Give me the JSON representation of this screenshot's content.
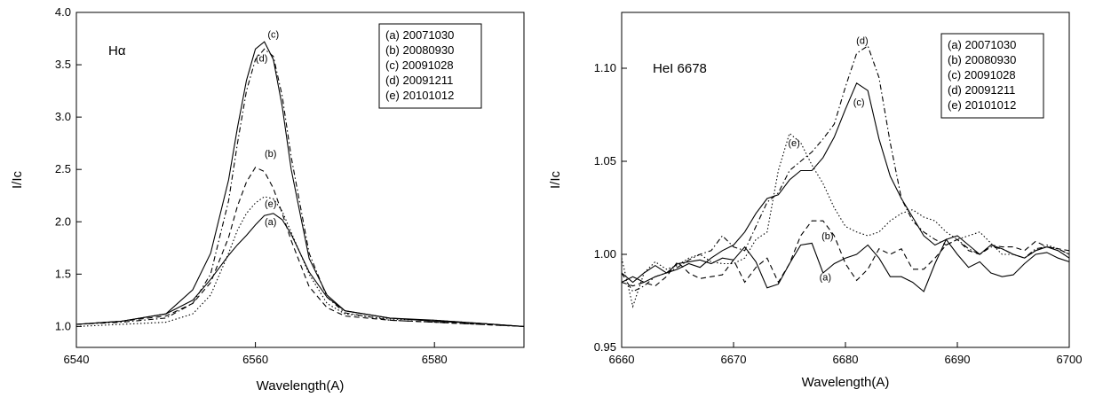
{
  "chart_data": [
    {
      "type": "line",
      "title": "Hα",
      "xlabel": "Wavelength(A)",
      "ylabel": "I/Ic",
      "xlim": [
        6540,
        6590
      ],
      "ylim": [
        0.8,
        4.0
      ],
      "xticks": [
        6540,
        6560,
        6580
      ],
      "xtick_labels": [
        "6540",
        "6560",
        "6580"
      ],
      "yticks": [
        1.0,
        1.5,
        2.0,
        2.5,
        3.0,
        3.5,
        4.0
      ],
      "ytick_labels": [
        "1.0",
        "1.5",
        "2.0",
        "2.5",
        "3.0",
        "3.5",
        "4.0"
      ],
      "grid": false,
      "legend": {
        "placement": "top-right",
        "entries": [
          "(a) 20071030",
          "(b) 20080930",
          "(c) 20091028",
          "(d) 20091211",
          "(e) 20101012"
        ]
      },
      "series": [
        {
          "name": "(a) 20071030",
          "style": "solid",
          "label": "(a)",
          "label_at": [
            6561.7,
            1.97
          ],
          "x": [
            6540,
            6545,
            6550,
            6553,
            6555,
            6557,
            6558,
            6559,
            6560,
            6561,
            6562,
            6563,
            6564,
            6566,
            6568,
            6570,
            6575,
            6580,
            6585,
            6590
          ],
          "y": [
            1.02,
            1.05,
            1.12,
            1.25,
            1.45,
            1.68,
            1.78,
            1.87,
            1.97,
            2.06,
            2.08,
            2.02,
            1.88,
            1.52,
            1.28,
            1.15,
            1.08,
            1.05,
            1.03,
            1.0
          ]
        },
        {
          "name": "(b) 20080930",
          "style": "dashed",
          "label": "(b)",
          "label_at": [
            6561.7,
            2.62
          ],
          "x": [
            6540,
            6545,
            6550,
            6553,
            6555,
            6557,
            6558,
            6559,
            6560,
            6561,
            6562,
            6563,
            6564,
            6566,
            6568,
            6570,
            6575,
            6580,
            6585,
            6590
          ],
          "y": [
            1.02,
            1.05,
            1.1,
            1.22,
            1.42,
            1.85,
            2.15,
            2.38,
            2.52,
            2.48,
            2.32,
            2.08,
            1.82,
            1.38,
            1.18,
            1.1,
            1.06,
            1.04,
            1.02,
            1.0
          ]
        },
        {
          "name": "(c) 20091028",
          "style": "solid",
          "label": "(c)",
          "label_at": [
            6562.0,
            3.76
          ],
          "x": [
            6540,
            6545,
            6550,
            6553,
            6555,
            6557,
            6558,
            6559,
            6560,
            6561,
            6562,
            6563,
            6564,
            6566,
            6568,
            6570,
            6575,
            6580,
            6585,
            6590
          ],
          "y": [
            1.02,
            1.05,
            1.12,
            1.35,
            1.7,
            2.4,
            2.9,
            3.35,
            3.65,
            3.72,
            3.55,
            3.1,
            2.5,
            1.65,
            1.3,
            1.15,
            1.08,
            1.06,
            1.03,
            1.0
          ]
        },
        {
          "name": "(d) 20091211",
          "style": "dashdot",
          "label": "(d)",
          "label_at": [
            6560.7,
            3.53
          ],
          "x": [
            6540,
            6545,
            6550,
            6553,
            6555,
            6557,
            6558,
            6559,
            6560,
            6561,
            6562,
            6563,
            6564,
            6566,
            6568,
            6570,
            6575,
            6580,
            6585,
            6590
          ],
          "y": [
            1.02,
            1.04,
            1.08,
            1.22,
            1.5,
            2.2,
            2.75,
            3.25,
            3.55,
            3.65,
            3.58,
            3.2,
            2.62,
            1.7,
            1.28,
            1.13,
            1.06,
            1.04,
            1.02,
            1.0
          ]
        },
        {
          "name": "(e) 20101012",
          "style": "dotted",
          "label": "(e)",
          "label_at": [
            6561.7,
            2.14
          ],
          "x": [
            6540,
            6545,
            6550,
            6553,
            6555,
            6557,
            6558,
            6559,
            6560,
            6561,
            6562,
            6563,
            6564,
            6566,
            6568,
            6570,
            6575,
            6580,
            6585,
            6590
          ],
          "y": [
            1.0,
            1.02,
            1.04,
            1.12,
            1.3,
            1.7,
            1.92,
            2.08,
            2.18,
            2.24,
            2.22,
            2.1,
            1.9,
            1.5,
            1.22,
            1.12,
            1.07,
            1.06,
            1.03,
            1.0
          ]
        }
      ]
    },
    {
      "type": "line",
      "title": "HeI 6678",
      "xlabel": "Wavelength(A)",
      "ylabel": "I/Ic",
      "xlim": [
        6660,
        6700
      ],
      "ylim": [
        0.95,
        1.13
      ],
      "xticks": [
        6660,
        6670,
        6680,
        6690,
        6700
      ],
      "xtick_labels": [
        "6660",
        "6670",
        "6680",
        "6690",
        "6700"
      ],
      "yticks": [
        0.95,
        1.0,
        1.05,
        1.1
      ],
      "ytick_labels": [
        "0.95",
        "1.00",
        "1.05",
        "1.10"
      ],
      "grid": false,
      "legend": {
        "placement": "top-right",
        "entries": [
          "(a) 20071030",
          "(b) 20080930",
          "(c) 20091028",
          "(d) 20091211",
          "(e) 20101012"
        ]
      },
      "series": [
        {
          "name": "(a) 20071030",
          "style": "solid",
          "label": "(a)",
          "label_at": [
            6678.2,
            0.986
          ],
          "x": [
            6660,
            6661,
            6662,
            6663,
            6664,
            6665,
            6666,
            6667,
            6668,
            6669,
            6670,
            6671,
            6672,
            6673,
            6674,
            6675,
            6676,
            6677,
            6678,
            6679,
            6680,
            6681,
            6682,
            6683,
            6684,
            6685,
            6686,
            6687,
            6688,
            6689,
            6690,
            6691,
            6692,
            6693,
            6694,
            6695,
            6696,
            6697,
            6698,
            6699,
            6700
          ],
          "y": [
            0.99,
            0.985,
            0.99,
            0.994,
            0.99,
            0.995,
            0.996,
            0.997,
            0.995,
            0.998,
            0.997,
            1.004,
            0.996,
            0.982,
            0.984,
            0.995,
            1.005,
            1.006,
            0.99,
            0.995,
            0.998,
            1.0,
            1.005,
            0.998,
            0.988,
            0.988,
            0.985,
            0.98,
            0.995,
            1.008,
            1.0,
            0.993,
            0.996,
            0.99,
            0.988,
            0.989,
            0.995,
            1.0,
            1.001,
            0.998,
            0.996
          ]
        },
        {
          "name": "(b) 20080930",
          "style": "dashed",
          "label": "(b)",
          "label_at": [
            6678.4,
            1.008
          ],
          "x": [
            6660,
            6661,
            6662,
            6663,
            6664,
            6665,
            6666,
            6667,
            6668,
            6669,
            6670,
            6671,
            6672,
            6673,
            6674,
            6675,
            6676,
            6677,
            6678,
            6679,
            6680,
            6681,
            6682,
            6683,
            6684,
            6685,
            6686,
            6687,
            6688,
            6689,
            6690,
            6691,
            6692,
            6693,
            6694,
            6695,
            6696,
            6697,
            6698,
            6699,
            6700
          ],
          "y": [
            0.985,
            0.983,
            0.985,
            0.983,
            0.988,
            0.996,
            0.99,
            0.987,
            0.988,
            0.989,
            0.997,
            0.985,
            0.993,
            0.998,
            0.985,
            0.995,
            1.01,
            1.018,
            1.018,
            1.01,
            0.995,
            0.986,
            0.992,
            1.003,
            1.0,
            1.003,
            0.992,
            0.992,
            0.998,
            1.005,
            1.008,
            1.002,
            1.0,
            1.005,
            1.004,
            1.004,
            1.002,
            1.007,
            1.004,
            1.003,
            1.002
          ]
        },
        {
          "name": "(c) 20091028",
          "style": "solid",
          "label": "(c)",
          "label_at": [
            6681.2,
            1.08
          ],
          "x": [
            6660,
            6661,
            6662,
            6663,
            6664,
            6665,
            6666,
            6667,
            6668,
            6669,
            6670,
            6671,
            6672,
            6673,
            6674,
            6675,
            6676,
            6677,
            6678,
            6679,
            6680,
            6681,
            6682,
            6683,
            6684,
            6685,
            6686,
            6687,
            6688,
            6689,
            6690,
            6691,
            6692,
            6693,
            6694,
            6695,
            6696,
            6697,
            6698,
            6699,
            6700
          ],
          "y": [
            0.985,
            0.988,
            0.985,
            0.988,
            0.99,
            0.992,
            0.995,
            0.993,
            0.998,
            1.002,
            1.005,
            1.012,
            1.022,
            1.03,
            1.032,
            1.04,
            1.045,
            1.045,
            1.052,
            1.063,
            1.078,
            1.092,
            1.088,
            1.062,
            1.042,
            1.03,
            1.02,
            1.01,
            1.005,
            1.008,
            1.01,
            1.005,
            1.0,
            1.005,
            1.003,
            1.0,
            0.998,
            1.002,
            1.004,
            1.002,
            0.998
          ]
        },
        {
          "name": "(d) 20091211",
          "style": "dashdot",
          "label": "(d)",
          "label_at": [
            6681.5,
            1.113
          ],
          "x": [
            6660,
            6661,
            6662,
            6663,
            6664,
            6665,
            6666,
            6667,
            6668,
            6669,
            6670,
            6671,
            6672,
            6673,
            6674,
            6675,
            6676,
            6677,
            6678,
            6679,
            6680,
            6681,
            6682,
            6683,
            6684,
            6685,
            6686,
            6687,
            6688,
            6689,
            6690,
            6691,
            6692,
            6693,
            6694,
            6695,
            6696,
            6697,
            6698,
            6699,
            6700
          ],
          "y": [
            0.99,
            0.98,
            0.983,
            0.988,
            0.99,
            0.993,
            0.997,
            1.0,
            1.002,
            1.01,
            1.004,
            1.002,
            1.015,
            1.028,
            1.033,
            1.045,
            1.05,
            1.055,
            1.062,
            1.07,
            1.09,
            1.108,
            1.112,
            1.095,
            1.06,
            1.03,
            1.018,
            1.012,
            1.008,
            1.005,
            1.008,
            1.003,
            1.0,
            1.004,
            1.003,
            1.0,
            0.998,
            1.003,
            1.004,
            1.003,
            1.0
          ]
        },
        {
          "name": "(e) 20101012",
          "style": "dotted",
          "label": "(e)",
          "label_at": [
            6675.4,
            1.058
          ],
          "x": [
            6660,
            6661,
            6662,
            6663,
            6664,
            6665,
            6666,
            6667,
            6668,
            6669,
            6670,
            6671,
            6672,
            6673,
            6674,
            6675,
            6676,
            6677,
            6678,
            6679,
            6680,
            6681,
            6682,
            6683,
            6684,
            6685,
            6686,
            6687,
            6688,
            6689,
            6690,
            6691,
            6692,
            6693,
            6694,
            6695,
            6696,
            6697,
            6698,
            6699,
            6700
          ],
          "y": [
            0.998,
            0.972,
            0.99,
            0.996,
            0.992,
            0.994,
            0.998,
            1.0,
            0.996,
            0.995,
            0.995,
            0.998,
            1.008,
            1.012,
            1.045,
            1.065,
            1.06,
            1.048,
            1.038,
            1.025,
            1.015,
            1.012,
            1.01,
            1.012,
            1.018,
            1.022,
            1.024,
            1.02,
            1.018,
            1.012,
            1.008,
            1.01,
            1.012,
            1.006,
            1.0,
            1.0,
            0.998,
            1.002,
            1.005,
            1.003,
            1.0
          ]
        }
      ]
    }
  ]
}
